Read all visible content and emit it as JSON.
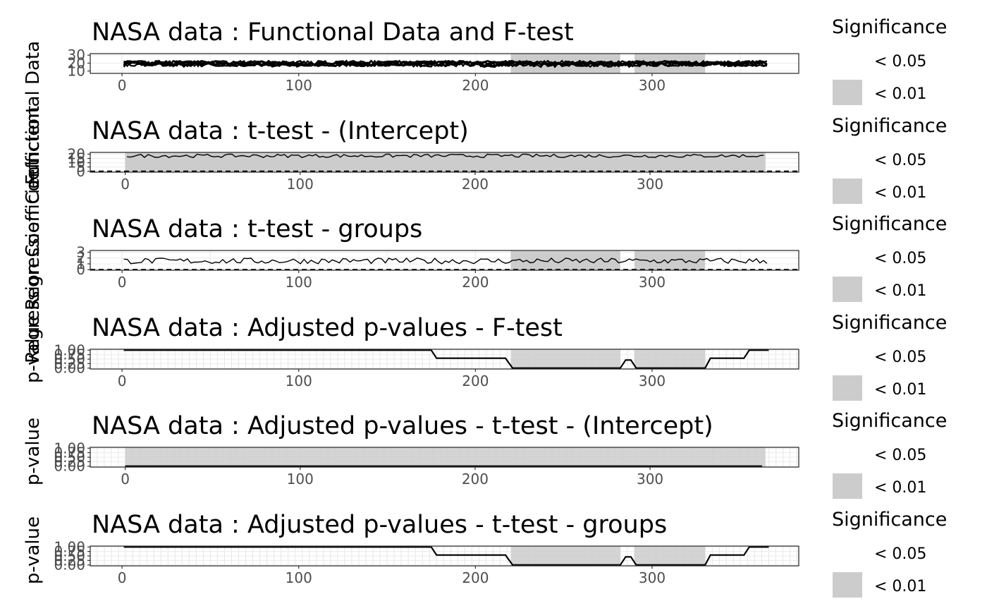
{
  "chart_data": [
    {
      "type": "line",
      "title": "NASA data : Functional Data and F-test",
      "ylabel": "Functional Data",
      "x_ticks": [
        0,
        100,
        200,
        300
      ],
      "y_ticks": [
        "10",
        "20",
        "30"
      ],
      "xlim": [
        -18,
        383
      ],
      "ylim": [
        7,
        32
      ],
      "series": [
        {
          "baseline": 18,
          "amplitude": 3.0,
          "n_curves": 6
        },
        {
          "baseline": 19.5,
          "amplitude": 3.5
        }
      ],
      "x_range": [
        1,
        365
      ],
      "significance_bands": [
        [
          220,
          282
        ],
        [
          290,
          330
        ]
      ],
      "legend": {
        "title": "Significance",
        "labels": [
          "< 0.05",
          "< 0.01"
        ],
        "colors": [
          "#ffffff",
          "#cccccc"
        ]
      }
    },
    {
      "type": "line",
      "title": "NASA data : t-test - (Intercept)",
      "ylabel": "Regression Coefficient",
      "x_ticks": [
        0,
        100,
        200,
        300
      ],
      "y_ticks": [
        "0",
        "5",
        "10",
        "15",
        "20"
      ],
      "xlim": [
        -20,
        385
      ],
      "ylim": [
        -1,
        22
      ],
      "series": [
        {
          "baseline": 18,
          "amplitude": 2.0
        }
      ],
      "x_range": [
        1,
        365
      ],
      "zero_line": true,
      "significance_bands": [
        [
          0,
          366
        ]
      ],
      "legend": {
        "title": "Significance",
        "labels": [
          "< 0.05",
          "< 0.01"
        ],
        "colors": [
          "#ffffff",
          "#cccccc"
        ]
      }
    },
    {
      "type": "line",
      "title": "NASA data : t-test - groups",
      "ylabel": "Regression Coefficient",
      "x_ticks": [
        0,
        100,
        200,
        300
      ],
      "y_ticks": [
        "0",
        "1",
        "2",
        "3"
      ],
      "xlim": [
        -18,
        383
      ],
      "ylim": [
        -0.1,
        3.3
      ],
      "series": [
        {
          "baseline": 1.5,
          "amplitude": 0.5
        }
      ],
      "x_range": [
        1,
        365
      ],
      "zero_line": true,
      "significance_bands": [
        [
          220,
          282
        ],
        [
          290,
          330
        ]
      ],
      "legend": {
        "title": "Significance",
        "labels": [
          "< 0.05",
          "< 0.01"
        ],
        "colors": [
          "#ffffff",
          "#cccccc"
        ]
      }
    },
    {
      "type": "line",
      "title": "NASA data : Adjusted p-values - F-test",
      "ylabel": "p-value",
      "x_ticks": [
        0,
        100,
        200,
        300
      ],
      "y_ticks": [
        "0.00",
        "0.25",
        "0.50",
        "0.75",
        "1.00"
      ],
      "xlim": [
        -18,
        383
      ],
      "ylim": [
        -0.05,
        1.05
      ],
      "dense_grid": true,
      "significance_bands": [
        [
          220,
          282
        ],
        [
          290,
          330
        ]
      ],
      "pvalue_line": [
        [
          1,
          1
        ],
        [
          175,
          1
        ],
        [
          178,
          0.55
        ],
        [
          217,
          0.55
        ],
        [
          221,
          0.0
        ],
        [
          282,
          0.0
        ],
        [
          285,
          0.45
        ],
        [
          288,
          0.45
        ],
        [
          291,
          0.0
        ],
        [
          330,
          0.0
        ],
        [
          333,
          0.55
        ],
        [
          352,
          0.55
        ],
        [
          355,
          1.0
        ],
        [
          366,
          1.0
        ]
      ],
      "legend": {
        "title": "Significance",
        "labels": [
          "< 0.05",
          "< 0.01"
        ],
        "colors": [
          "#ffffff",
          "#cccccc"
        ]
      }
    },
    {
      "type": "line",
      "title": "NASA data : Adjusted p-values - t-test - (Intercept)",
      "ylabel": "p-value",
      "x_ticks": [
        0,
        100,
        200,
        300
      ],
      "y_ticks": [
        "0.00",
        "0.25",
        "0.50",
        "0.75",
        "1.00"
      ],
      "xlim": [
        -20,
        385
      ],
      "ylim": [
        -0.05,
        1.05
      ],
      "dense_grid": true,
      "significance_bands": [
        [
          0,
          366
        ]
      ],
      "pvalue_line": [
        [
          0,
          0.0
        ],
        [
          364,
          0.0
        ]
      ],
      "legend": {
        "title": "Significance",
        "labels": [
          "< 0.05",
          "< 0.01"
        ],
        "colors": [
          "#ffffff",
          "#cccccc"
        ]
      }
    },
    {
      "type": "line",
      "title": "NASA data : Adjusted p-values - t-test - groups",
      "ylabel": "p-value",
      "x_ticks": [
        0,
        100,
        200,
        300
      ],
      "y_ticks": [
        "0.00",
        "0.25",
        "0.50",
        "0.75",
        "1.00"
      ],
      "xlim": [
        -18,
        383
      ],
      "ylim": [
        -0.05,
        1.05
      ],
      "dense_grid": true,
      "significance_bands": [
        [
          220,
          282
        ],
        [
          290,
          330
        ]
      ],
      "pvalue_line": [
        [
          1,
          1
        ],
        [
          175,
          1
        ],
        [
          178,
          0.55
        ],
        [
          217,
          0.55
        ],
        [
          221,
          0.0
        ],
        [
          282,
          0.0
        ],
        [
          285,
          0.45
        ],
        [
          288,
          0.45
        ],
        [
          291,
          0.0
        ],
        [
          330,
          0.0
        ],
        [
          333,
          0.55
        ],
        [
          352,
          0.55
        ],
        [
          355,
          1.0
        ],
        [
          366,
          1.0
        ]
      ],
      "legend": {
        "title": "Significance",
        "labels": [
          "< 0.05",
          "< 0.01"
        ],
        "colors": [
          "#ffffff",
          "#cccccc"
        ]
      }
    }
  ],
  "colors": {
    "band": "#cccccc",
    "panel_border": "#333333",
    "grid": "#ebebeb",
    "line": "#000000"
  }
}
